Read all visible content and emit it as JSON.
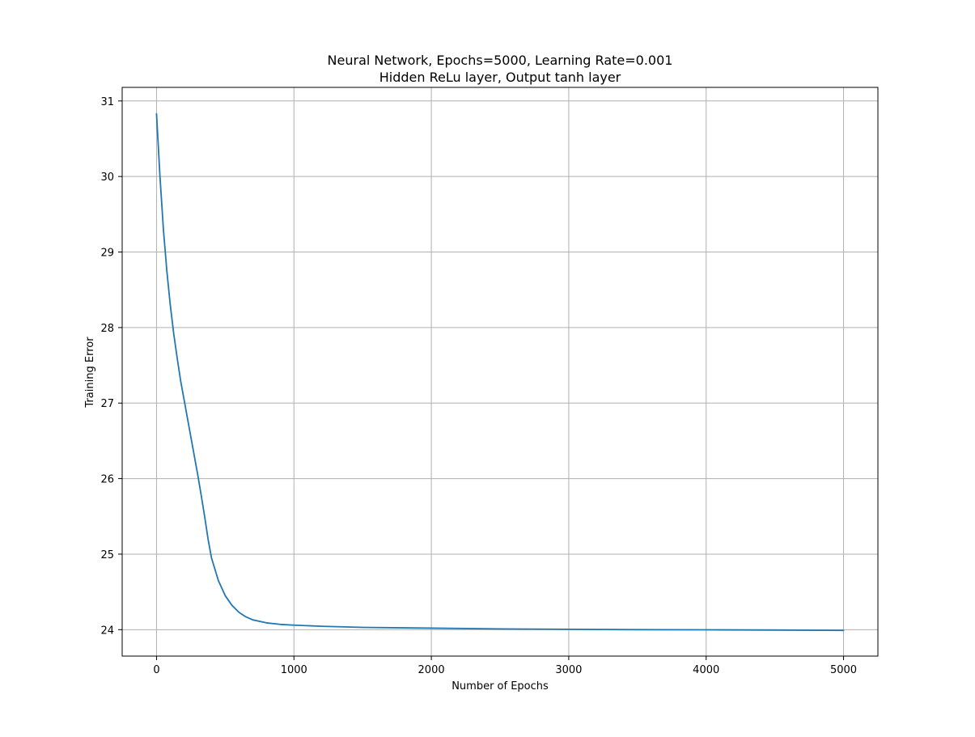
{
  "chart_data": {
    "type": "line",
    "title": "Neural Network, Epochs=5000, Learning Rate=0.001",
    "subtitle": "Hidden ReLu layer, Output tanh layer",
    "xlabel": "Number of Epochs",
    "ylabel": "Training Error",
    "xlim": [
      -250,
      5250
    ],
    "ylim": [
      23.65,
      31.18
    ],
    "xticks": [
      0,
      1000,
      2000,
      3000,
      4000,
      5000
    ],
    "xtick_labels": [
      "0",
      "1000",
      "2000",
      "3000",
      "4000",
      "5000"
    ],
    "yticks": [
      24,
      25,
      26,
      27,
      28,
      29,
      30,
      31
    ],
    "ytick_labels": [
      "24",
      "25",
      "26",
      "27",
      "28",
      "29",
      "30",
      "31"
    ],
    "grid": true,
    "series": [
      {
        "name": "Training Error",
        "color": "#1f77b4",
        "x": [
          0,
          25,
          50,
          75,
          100,
          125,
          150,
          175,
          200,
          250,
          300,
          325,
          350,
          375,
          400,
          425,
          450,
          500,
          550,
          600,
          650,
          700,
          750,
          800,
          900,
          1000,
          1200,
          1500,
          2000,
          2500,
          3000,
          3500,
          4000,
          4500,
          5000
        ],
        "y": [
          30.83,
          30.0,
          29.3,
          28.75,
          28.3,
          27.92,
          27.6,
          27.3,
          27.05,
          26.55,
          26.05,
          25.78,
          25.5,
          25.2,
          24.95,
          24.8,
          24.65,
          24.45,
          24.32,
          24.23,
          24.17,
          24.13,
          24.11,
          24.09,
          24.07,
          24.06,
          24.045,
          24.03,
          24.02,
          24.01,
          24.005,
          24.0,
          23.998,
          23.995,
          23.99
        ]
      }
    ]
  }
}
